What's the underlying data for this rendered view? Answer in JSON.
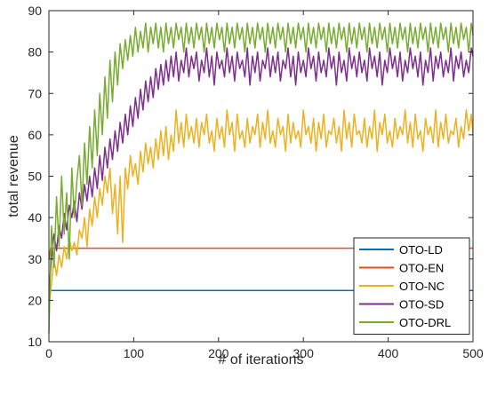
{
  "chart_data": {
    "type": "line",
    "xlabel": "# of iterations",
    "ylabel": "total revenue",
    "xlim": [
      0,
      500
    ],
    "ylim": [
      10,
      90
    ],
    "xticks": [
      0,
      100,
      200,
      300,
      400,
      500
    ],
    "yticks": [
      10,
      20,
      30,
      40,
      50,
      60,
      70,
      80,
      90
    ],
    "grid": false,
    "legend_position": "bottom-right",
    "series": [
      {
        "name": "OTO-LD",
        "color": "#0072BD",
        "x": [
          0,
          2,
          500
        ],
        "y": [
          20,
          22.4,
          22.4
        ]
      },
      {
        "name": "OTO-EN",
        "color": "#D95319",
        "x": [
          0,
          2,
          500
        ],
        "y": [
          30,
          32.6,
          32.6
        ]
      },
      {
        "name": "OTO-NC",
        "color": "#EDB120",
        "x": [
          0,
          3,
          6,
          9,
          12,
          15,
          18,
          21,
          24,
          27,
          30,
          33,
          36,
          39,
          42,
          45,
          48,
          51,
          54,
          57,
          60,
          63,
          66,
          69,
          72,
          75,
          78,
          81,
          84,
          87,
          90,
          93,
          96,
          99,
          102,
          105,
          108,
          111,
          114,
          117,
          120,
          123,
          126,
          129,
          132,
          135,
          138,
          141,
          144,
          147,
          150,
          153,
          156,
          159,
          162,
          165,
          168,
          171,
          174,
          177,
          180,
          183,
          186,
          189,
          192,
          195,
          198,
          201,
          204,
          207,
          210,
          213,
          216,
          219,
          222,
          225,
          228,
          231,
          234,
          237,
          240,
          243,
          246,
          249,
          252,
          255,
          258,
          261,
          264,
          267,
          270,
          273,
          276,
          279,
          282,
          285,
          288,
          291,
          294,
          297,
          300,
          303,
          306,
          309,
          312,
          315,
          318,
          321,
          324,
          327,
          330,
          333,
          336,
          339,
          342,
          345,
          348,
          351,
          354,
          357,
          360,
          363,
          366,
          369,
          372,
          375,
          378,
          381,
          384,
          387,
          390,
          393,
          396,
          399,
          402,
          405,
          408,
          411,
          414,
          417,
          420,
          423,
          426,
          429,
          432,
          435,
          438,
          441,
          444,
          447,
          450,
          453,
          456,
          459,
          462,
          465,
          468,
          471,
          474,
          477,
          480,
          483,
          486,
          489,
          492,
          495,
          498,
          500
        ],
        "y": [
          18,
          24,
          30,
          26,
          31,
          28,
          33,
          30,
          35,
          32,
          34,
          31,
          37,
          35,
          40,
          33,
          42,
          38,
          45,
          40,
          47,
          43,
          50,
          46,
          52,
          41,
          48,
          36,
          50,
          34,
          52,
          47,
          55,
          50,
          53,
          48,
          56,
          51,
          58,
          53,
          57,
          52,
          59,
          54,
          61,
          55,
          62,
          54,
          60,
          56,
          66,
          58,
          63,
          57,
          65,
          59,
          62,
          58,
          64,
          57,
          63,
          60,
          65,
          58,
          61,
          56,
          64,
          59,
          62,
          57,
          66,
          60,
          63,
          56,
          65,
          59,
          61,
          57,
          64,
          58,
          62,
          60,
          65,
          57,
          63,
          59,
          66,
          58,
          61,
          57,
          64,
          60,
          62,
          56,
          65,
          58,
          63,
          59,
          61,
          57,
          66,
          60,
          62,
          58,
          64,
          56,
          63,
          59,
          65,
          57,
          61,
          60,
          64,
          58,
          62,
          56,
          66,
          59,
          63,
          57,
          65,
          60,
          61,
          58,
          64,
          57,
          62,
          59,
          66,
          56,
          63,
          60,
          65,
          58,
          61,
          57,
          64,
          59,
          62,
          60,
          66,
          58,
          63,
          57,
          65,
          59,
          61,
          56,
          64,
          60,
          62,
          58,
          66,
          57,
          63,
          59,
          65,
          58,
          61,
          60,
          64,
          57,
          62,
          59,
          66,
          61,
          65,
          60
        ]
      },
      {
        "name": "OTO-SD",
        "color": "#7E2F8E",
        "x": [
          0,
          3,
          6,
          9,
          12,
          15,
          18,
          21,
          24,
          27,
          30,
          33,
          36,
          39,
          42,
          45,
          48,
          51,
          54,
          57,
          60,
          63,
          66,
          69,
          72,
          75,
          78,
          81,
          84,
          87,
          90,
          93,
          96,
          99,
          102,
          105,
          108,
          111,
          114,
          117,
          120,
          123,
          126,
          129,
          132,
          135,
          138,
          141,
          144,
          147,
          150,
          153,
          156,
          159,
          162,
          165,
          168,
          171,
          174,
          177,
          180,
          183,
          186,
          189,
          192,
          195,
          198,
          201,
          204,
          207,
          210,
          213,
          216,
          219,
          222,
          225,
          228,
          231,
          234,
          237,
          240,
          243,
          246,
          249,
          252,
          255,
          258,
          261,
          264,
          267,
          270,
          273,
          276,
          279,
          282,
          285,
          288,
          291,
          294,
          297,
          300,
          303,
          306,
          309,
          312,
          315,
          318,
          321,
          324,
          327,
          330,
          333,
          336,
          339,
          342,
          345,
          348,
          351,
          354,
          357,
          360,
          363,
          366,
          369,
          372,
          375,
          378,
          381,
          384,
          387,
          390,
          393,
          396,
          399,
          402,
          405,
          408,
          411,
          414,
          417,
          420,
          423,
          426,
          429,
          432,
          435,
          438,
          441,
          444,
          447,
          450,
          453,
          456,
          459,
          462,
          465,
          468,
          471,
          474,
          477,
          480,
          483,
          486,
          489,
          492,
          495,
          498,
          500
        ],
        "y": [
          22,
          30,
          36,
          32,
          38,
          35,
          41,
          37,
          43,
          40,
          44,
          39,
          46,
          42,
          48,
          44,
          50,
          45,
          52,
          47,
          55,
          49,
          57,
          52,
          59,
          54,
          61,
          56,
          63,
          58,
          65,
          60,
          67,
          62,
          69,
          64,
          71,
          66,
          73,
          68,
          74,
          69,
          76,
          71,
          77,
          72,
          78,
          73,
          79,
          74,
          80,
          73,
          78,
          75,
          81,
          74,
          79,
          76,
          80,
          73,
          78,
          75,
          81,
          74,
          79,
          72,
          80,
          76,
          78,
          74,
          81,
          75,
          79,
          73,
          80,
          76,
          78,
          74,
          81,
          72,
          79,
          75,
          80,
          73,
          78,
          76,
          81,
          74,
          79,
          75,
          80,
          73,
          78,
          76,
          81,
          74,
          79,
          72,
          80,
          75,
          78,
          74,
          81,
          76,
          79,
          73,
          80,
          75,
          78,
          74,
          81,
          76,
          79,
          72,
          80,
          75,
          78,
          73,
          81,
          76,
          79,
          74,
          80,
          75,
          78,
          73,
          81,
          76,
          79,
          74,
          80,
          72,
          78,
          75,
          81,
          76,
          79,
          74,
          80,
          73,
          78,
          75,
          81,
          76,
          79,
          74,
          80,
          72,
          78,
          75,
          81,
          73,
          79,
          76,
          80,
          74,
          78,
          75,
          81,
          73,
          79,
          76,
          80,
          74,
          78,
          75,
          81,
          79
        ]
      },
      {
        "name": "OTO-DRL",
        "color": "#77AC30",
        "x": [
          0,
          3,
          6,
          9,
          12,
          15,
          18,
          21,
          24,
          27,
          30,
          33,
          36,
          39,
          42,
          45,
          48,
          51,
          54,
          57,
          60,
          63,
          66,
          69,
          72,
          75,
          78,
          81,
          84,
          87,
          90,
          93,
          96,
          99,
          102,
          105,
          108,
          111,
          114,
          117,
          120,
          123,
          126,
          129,
          132,
          135,
          138,
          141,
          144,
          147,
          150,
          153,
          156,
          159,
          162,
          165,
          168,
          171,
          174,
          177,
          180,
          183,
          186,
          189,
          192,
          195,
          198,
          201,
          204,
          207,
          210,
          213,
          216,
          219,
          222,
          225,
          228,
          231,
          234,
          237,
          240,
          243,
          246,
          249,
          252,
          255,
          258,
          261,
          264,
          267,
          270,
          273,
          276,
          279,
          282,
          285,
          288,
          291,
          294,
          297,
          300,
          303,
          306,
          309,
          312,
          315,
          318,
          321,
          324,
          327,
          330,
          333,
          336,
          339,
          342,
          345,
          348,
          351,
          354,
          357,
          360,
          363,
          366,
          369,
          372,
          375,
          378,
          381,
          384,
          387,
          390,
          393,
          396,
          399,
          402,
          405,
          408,
          411,
          414,
          417,
          420,
          423,
          426,
          429,
          432,
          435,
          438,
          441,
          444,
          447,
          450,
          453,
          456,
          459,
          462,
          465,
          468,
          471,
          474,
          477,
          480,
          483,
          486,
          489,
          492,
          495,
          498,
          500
        ],
        "y": [
          12,
          38,
          28,
          45,
          33,
          50,
          36,
          46,
          30,
          52,
          40,
          49,
          55,
          43,
          58,
          48,
          62,
          52,
          66,
          55,
          70,
          60,
          74,
          64,
          78,
          68,
          80,
          72,
          82,
          76,
          83,
          78,
          84,
          79,
          86,
          80,
          85,
          81,
          87,
          80,
          86,
          82,
          87,
          81,
          86,
          80,
          87,
          82,
          86,
          81,
          87,
          83,
          86,
          80,
          87,
          82,
          86,
          81,
          87,
          83,
          86,
          80,
          87,
          82,
          86,
          81,
          87,
          83,
          86,
          80,
          87,
          82,
          86,
          81,
          87,
          83,
          86,
          80,
          87,
          82,
          86,
          81,
          87,
          83,
          86,
          80,
          87,
          82,
          86,
          81,
          87,
          83,
          86,
          80,
          87,
          82,
          86,
          81,
          87,
          83,
          86,
          80,
          87,
          82,
          86,
          81,
          87,
          83,
          86,
          80,
          87,
          82,
          86,
          81,
          87,
          83,
          86,
          80,
          87,
          82,
          86,
          81,
          87,
          83,
          86,
          80,
          87,
          82,
          86,
          81,
          87,
          83,
          86,
          80,
          87,
          82,
          86,
          81,
          87,
          83,
          86,
          80,
          87,
          82,
          86,
          81,
          87,
          83,
          86,
          80,
          87,
          82,
          86,
          81,
          87,
          83,
          86,
          80,
          87,
          82,
          86,
          81,
          87,
          83,
          86,
          80,
          87,
          84
        ]
      }
    ]
  }
}
